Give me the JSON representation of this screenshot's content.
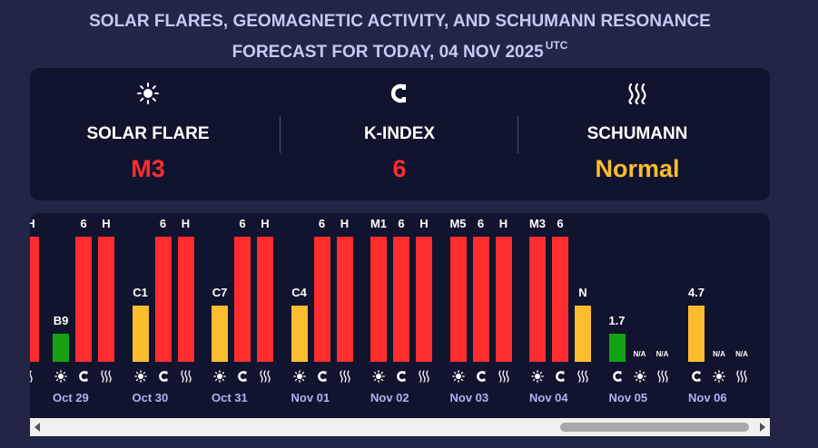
{
  "header": {
    "title_line1": "SOLAR FLARES, GEOMAGNETIC ACTIVITY, AND SCHUMANN RESONANCE",
    "title_line2": "FORECAST FOR TODAY, 04 NOV 2025",
    "tz": "UTC"
  },
  "summary": {
    "solar": {
      "label": "SOLAR FLARE",
      "value": "M3",
      "color": "#ff2d2d",
      "icon": "sun-icon"
    },
    "kindex": {
      "label": "K-INDEX",
      "value": "6",
      "color": "#ff2d2d",
      "icon": "magnet-icon"
    },
    "schumann": {
      "label": "SCHUMANN",
      "value": "Normal",
      "color": "#fbbd2e",
      "icon": "wave-icon"
    }
  },
  "colors": {
    "high": "#ff2d2d",
    "medium": "#fbbd2e",
    "low": "#14a214"
  },
  "chart_data": {
    "type": "bar",
    "partial_left_label": "H",
    "days": [
      {
        "date": "Oct 29",
        "solar": "B9",
        "solar_level": 0.25,
        "solar_color": "high_low",
        "kindex": "6",
        "kindex_level": 1,
        "schumann": "H",
        "schumann_level": 1
      },
      {
        "date": "Oct 30",
        "solar": "C1",
        "solar_level": 0.5,
        "kindex": "6",
        "kindex_level": 1,
        "schumann": "H",
        "schumann_level": 1
      },
      {
        "date": "Oct 31",
        "solar": "C7",
        "solar_level": 0.5,
        "kindex": "6",
        "kindex_level": 1,
        "schumann": "H",
        "schumann_level": 1
      },
      {
        "date": "Nov 01",
        "solar": "C4",
        "solar_level": 0.5,
        "kindex": "6",
        "kindex_level": 1,
        "schumann": "H",
        "schumann_level": 1
      },
      {
        "date": "Nov 02",
        "solar": "M1",
        "solar_level": 1,
        "kindex": "6",
        "kindex_level": 1,
        "schumann": "H",
        "schumann_level": 1
      },
      {
        "date": "Nov 03",
        "solar": "M5",
        "solar_level": 1,
        "kindex": "6",
        "kindex_level": 1,
        "schumann": "H",
        "schumann_level": 1
      },
      {
        "date": "Nov 04",
        "solar": "M3",
        "solar_level": 1,
        "kindex": "6",
        "kindex_level": 1,
        "schumann": "N",
        "schumann_level": 0.5
      },
      {
        "date": "Nov 05",
        "solar": null,
        "solar_level": 0,
        "kindex": "1.7",
        "kindex_level": 0.25,
        "schumann": "N/A",
        "schumann_level": 0,
        "solar_na": "N/A",
        "kindex_first": true
      },
      {
        "date": "Nov 06",
        "solar": null,
        "solar_level": 0,
        "kindex": "4.7",
        "kindex_level": 0.5,
        "schumann": "N/A",
        "schumann_level": 0,
        "solar_na": "N/A",
        "kindex_first": true
      }
    ]
  }
}
